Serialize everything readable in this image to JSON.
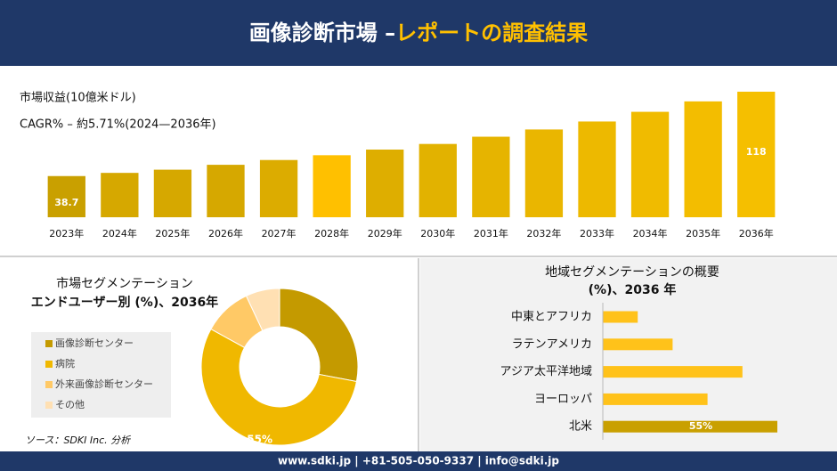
{
  "header": {
    "title": "画像診断市場 –",
    "title_highlight": "レポートの調査結果"
  },
  "chart_data": [
    {
      "type": "bar",
      "title": "市場収益(10億米ドル)",
      "subtitle": "CAGR% – 約5.71%(2024—2036年)",
      "categories": [
        "2023年",
        "2024年",
        "2025年",
        "2026年",
        "2027年",
        "2028年",
        "2029年",
        "2030年",
        "2031年",
        "2032年",
        "2033年",
        "2034年",
        "2035年",
        "2036年"
      ],
      "values": [
        38.7,
        41.7,
        44.7,
        49.3,
        53.8,
        58.3,
        63.6,
        68.9,
        75.7,
        82.5,
        90.0,
        99.1,
        108.9,
        118
      ],
      "colors": [
        "#c9a000",
        "#d6a800",
        "#d6a800",
        "#d6a800",
        "#dcac00",
        "#ffc000",
        "#deae00",
        "#e2b200",
        "#e6b400",
        "#eab600",
        "#edb900",
        "#f0bb00",
        "#f3bd00",
        "#f5bf00"
      ]
    },
    {
      "type": "donut",
      "title": "市場セグメンテーション",
      "subtitle": "エンドユーザー別 (%)、2036年",
      "categories": [
        "画像診断センター",
        "病院",
        "外来画像診断センター",
        "その他"
      ],
      "values": [
        28,
        55,
        10,
        7
      ],
      "value_labels": [
        null,
        "55%",
        null,
        null
      ],
      "colors": [
        "#c49a00",
        "#f0b800",
        "#ffc966",
        "#ffe0b3"
      ]
    },
    {
      "type": "hbar",
      "title": "地域セグメンテーションの概要",
      "subtitle": "(%)、2036 年",
      "categories": [
        "中東とアフリカ",
        "ラテンアメリカ",
        "アジア太平洋地域",
        "ヨーロッパ",
        "北米"
      ],
      "values": [
        11,
        22,
        44,
        33,
        55
      ],
      "value_labels": [
        null,
        null,
        null,
        null,
        "55%"
      ],
      "colors": [
        "#ffc21a",
        "#ffc21a",
        "#ffc21a",
        "#ffc21a",
        "#c9a000"
      ]
    }
  ],
  "source": "ソース：SDKI Inc. 分析",
  "footer": "www.sdki.jp | +81-505-050-9337 | info@sdki.jp"
}
